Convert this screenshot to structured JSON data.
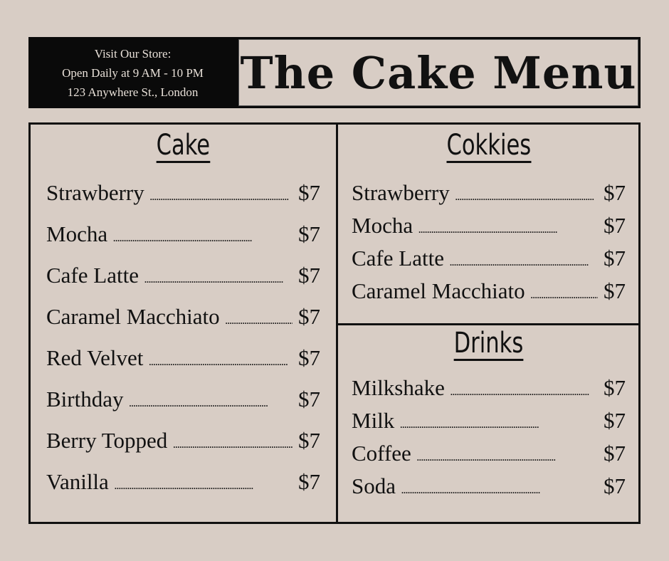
{
  "store": {
    "line1": "Visit Our Store:",
    "line2": "Open Daily at 9 AM - 10 PM",
    "line3": "123 Anywhere St., London"
  },
  "title": "The Cake Menu",
  "colors": {
    "background": "#d8cdc5",
    "ink": "#111111",
    "store_box": "#0a0a0a"
  },
  "sections": {
    "cake": {
      "heading": "Cake",
      "items": [
        {
          "name": "Strawberry",
          "price": "$7"
        },
        {
          "name": "Mocha",
          "price": "$7"
        },
        {
          "name": "Cafe Latte",
          "price": "$7"
        },
        {
          "name": "Caramel Macchiato",
          "price": "$7"
        },
        {
          "name": "Red Velvet",
          "price": "$7"
        },
        {
          "name": "Birthday",
          "price": "$7"
        },
        {
          "name": "Berry Topped",
          "price": "$7"
        },
        {
          "name": "Vanilla",
          "price": "$7"
        }
      ]
    },
    "cookies": {
      "heading": "Cokkies",
      "items": [
        {
          "name": "Strawberry",
          "price": "$7"
        },
        {
          "name": "Mocha",
          "price": "$7"
        },
        {
          "name": "Cafe Latte",
          "price": "$7"
        },
        {
          "name": "Caramel Macchiato",
          "price": "$7"
        }
      ]
    },
    "drinks": {
      "heading": "Drinks",
      "items": [
        {
          "name": "Milkshake",
          "price": "$7"
        },
        {
          "name": "Milk",
          "price": "$7"
        },
        {
          "name": "Coffee",
          "price": "$7"
        },
        {
          "name": "Soda",
          "price": "$7"
        }
      ]
    }
  }
}
